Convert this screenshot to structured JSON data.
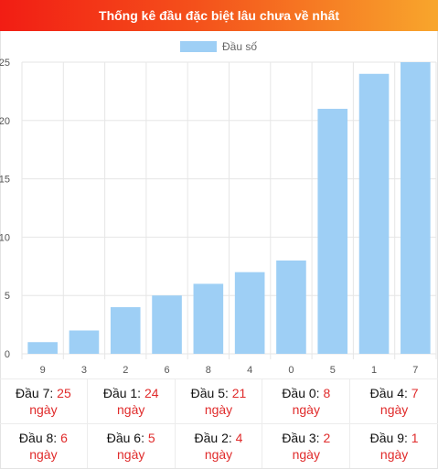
{
  "header": {
    "title": "Thống kê đầu đặc biệt lâu chưa về nhất"
  },
  "colors": {
    "bar": "#9ecff5",
    "grid": "#e6e6e6",
    "accent": "#e02b2b"
  },
  "chart_data": {
    "type": "bar",
    "title": "",
    "legend": {
      "label": "Đầu số",
      "position": "top-center"
    },
    "categories": [
      "9",
      "3",
      "2",
      "6",
      "8",
      "4",
      "0",
      "5",
      "1",
      "7"
    ],
    "series": [
      {
        "name": "Đầu số",
        "values": [
          1,
          2,
          4,
          5,
          6,
          7,
          8,
          21,
          24,
          25
        ]
      }
    ],
    "yticks": [
      0,
      5,
      10,
      15,
      20,
      25
    ],
    "ylim": [
      0,
      25
    ],
    "grid": true
  },
  "stats": {
    "unit": "ngày",
    "items": [
      {
        "label": "Đầu 7:",
        "value": "25"
      },
      {
        "label": "Đầu 1:",
        "value": "24"
      },
      {
        "label": "Đầu 5:",
        "value": "21"
      },
      {
        "label": "Đầu 0:",
        "value": "8"
      },
      {
        "label": "Đầu 4:",
        "value": "7"
      },
      {
        "label": "Đầu 8:",
        "value": "6"
      },
      {
        "label": "Đầu 6:",
        "value": "5"
      },
      {
        "label": "Đầu 2:",
        "value": "4"
      },
      {
        "label": "Đầu 3:",
        "value": "2"
      },
      {
        "label": "Đầu 9:",
        "value": "1"
      }
    ]
  }
}
